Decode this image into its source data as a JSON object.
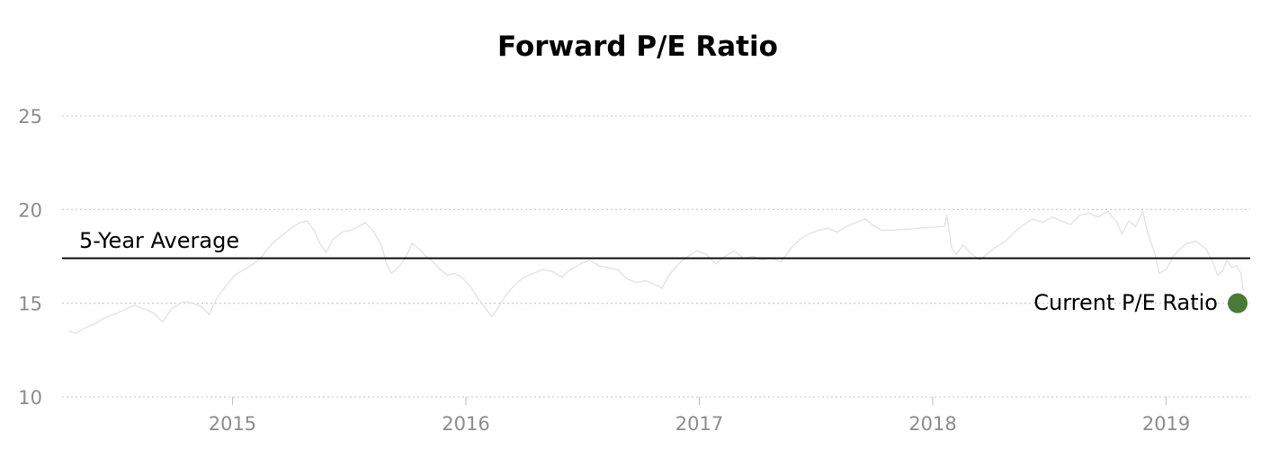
{
  "chart_data": {
    "type": "line",
    "title": "Forward P/E Ratio",
    "xlabel": "",
    "ylabel": "",
    "xlim": [
      2014.27,
      2019.36
    ],
    "ylim": [
      10,
      25
    ],
    "yticks": [
      10,
      15,
      20,
      25
    ],
    "xticks": [
      2015,
      2016,
      2017,
      2018,
      2019
    ],
    "grid": true,
    "series": [
      {
        "name": "",
        "color": "#e3e3e3",
        "points": [
          [
            2014.3,
            13.5
          ],
          [
            2014.33,
            13.4
          ],
          [
            2014.37,
            13.7
          ],
          [
            2014.41,
            13.9
          ],
          [
            2014.45,
            14.2
          ],
          [
            2014.49,
            14.4
          ],
          [
            2014.53,
            14.6
          ],
          [
            2014.58,
            14.9
          ],
          [
            2014.62,
            14.7
          ],
          [
            2014.66,
            14.5
          ],
          [
            2014.7,
            14.0
          ],
          [
            2014.74,
            14.7
          ],
          [
            2014.79,
            15.1
          ],
          [
            2014.83,
            15.0
          ],
          [
            2014.87,
            14.8
          ],
          [
            2014.9,
            14.4
          ],
          [
            2014.93,
            15.2
          ],
          [
            2014.97,
            15.9
          ],
          [
            2015.01,
            16.5
          ],
          [
            2015.05,
            16.8
          ],
          [
            2015.09,
            17.1
          ],
          [
            2015.12,
            17.4
          ],
          [
            2015.15,
            17.9
          ],
          [
            2015.18,
            18.3
          ],
          [
            2015.22,
            18.7
          ],
          [
            2015.25,
            19.0
          ],
          [
            2015.29,
            19.3
          ],
          [
            2015.32,
            19.4
          ],
          [
            2015.35,
            18.9
          ],
          [
            2015.37,
            18.3
          ],
          [
            2015.4,
            17.7
          ],
          [
            2015.43,
            18.4
          ],
          [
            2015.47,
            18.8
          ],
          [
            2015.51,
            18.9
          ],
          [
            2015.54,
            19.1
          ],
          [
            2015.57,
            19.3
          ],
          [
            2015.6,
            18.9
          ],
          [
            2015.62,
            18.5
          ],
          [
            2015.64,
            18.0
          ],
          [
            2015.66,
            17.1
          ],
          [
            2015.68,
            16.6
          ],
          [
            2015.71,
            16.9
          ],
          [
            2015.74,
            17.4
          ],
          [
            2015.77,
            18.2
          ],
          [
            2015.8,
            17.9
          ],
          [
            2015.83,
            17.5
          ],
          [
            2015.86,
            17.2
          ],
          [
            2015.89,
            16.8
          ],
          [
            2015.92,
            16.5
          ],
          [
            2015.95,
            16.6
          ],
          [
            2015.98,
            16.4
          ],
          [
            2016.02,
            15.9
          ],
          [
            2016.05,
            15.3
          ],
          [
            2016.08,
            14.8
          ],
          [
            2016.11,
            14.3
          ],
          [
            2016.13,
            14.6
          ],
          [
            2016.17,
            15.4
          ],
          [
            2016.21,
            16.0
          ],
          [
            2016.25,
            16.4
          ],
          [
            2016.29,
            16.6
          ],
          [
            2016.33,
            16.8
          ],
          [
            2016.37,
            16.7
          ],
          [
            2016.41,
            16.4
          ],
          [
            2016.45,
            16.8
          ],
          [
            2016.49,
            17.1
          ],
          [
            2016.53,
            17.3
          ],
          [
            2016.57,
            17.0
          ],
          [
            2016.61,
            16.9
          ],
          [
            2016.65,
            16.8
          ],
          [
            2016.69,
            16.3
          ],
          [
            2016.73,
            16.1
          ],
          [
            2016.77,
            16.2
          ],
          [
            2016.81,
            16.0
          ],
          [
            2016.84,
            15.8
          ],
          [
            2016.87,
            16.5
          ],
          [
            2016.91,
            17.1
          ],
          [
            2016.95,
            17.5
          ],
          [
            2016.99,
            17.8
          ],
          [
            2017.03,
            17.6
          ],
          [
            2017.07,
            17.1
          ],
          [
            2017.11,
            17.5
          ],
          [
            2017.15,
            17.8
          ],
          [
            2017.19,
            17.4
          ],
          [
            2017.23,
            17.5
          ],
          [
            2017.27,
            17.3
          ],
          [
            2017.31,
            17.4
          ],
          [
            2017.35,
            17.2
          ],
          [
            2017.39,
            17.9
          ],
          [
            2017.43,
            18.4
          ],
          [
            2017.47,
            18.7
          ],
          [
            2017.51,
            18.9
          ],
          [
            2017.55,
            19.0
          ],
          [
            2017.59,
            18.8
          ],
          [
            2017.63,
            19.1
          ],
          [
            2017.67,
            19.3
          ],
          [
            2017.71,
            19.5
          ],
          [
            2017.74,
            19.2
          ],
          [
            2017.78,
            18.9
          ],
          [
            2017.83,
            18.9
          ],
          [
            2018.05,
            19.1
          ],
          [
            2018.06,
            19.7
          ],
          [
            2018.08,
            18.0
          ],
          [
            2018.1,
            17.6
          ],
          [
            2018.13,
            18.1
          ],
          [
            2018.16,
            17.7
          ],
          [
            2018.2,
            17.3
          ],
          [
            2018.23,
            17.6
          ],
          [
            2018.27,
            18.0
          ],
          [
            2018.31,
            18.3
          ],
          [
            2018.35,
            18.8
          ],
          [
            2018.39,
            19.2
          ],
          [
            2018.43,
            19.5
          ],
          [
            2018.47,
            19.3
          ],
          [
            2018.51,
            19.6
          ],
          [
            2018.55,
            19.4
          ],
          [
            2018.59,
            19.2
          ],
          [
            2018.63,
            19.7
          ],
          [
            2018.67,
            19.8
          ],
          [
            2018.71,
            19.6
          ],
          [
            2018.75,
            19.9
          ],
          [
            2018.79,
            19.3
          ],
          [
            2018.81,
            18.7
          ],
          [
            2018.84,
            19.4
          ],
          [
            2018.87,
            19.1
          ],
          [
            2018.9,
            19.9
          ],
          [
            2018.92,
            18.8
          ],
          [
            2018.95,
            17.7
          ],
          [
            2018.97,
            16.6
          ],
          [
            2019.0,
            16.8
          ],
          [
            2019.03,
            17.5
          ],
          [
            2019.06,
            17.9
          ],
          [
            2019.09,
            18.2
          ],
          [
            2019.13,
            18.3
          ],
          [
            2019.17,
            17.9
          ],
          [
            2019.2,
            17.2
          ],
          [
            2019.22,
            16.5
          ],
          [
            2019.24,
            16.7
          ],
          [
            2019.26,
            17.3
          ],
          [
            2019.28,
            16.9
          ],
          [
            2019.3,
            17.0
          ],
          [
            2019.32,
            16.6
          ],
          [
            2019.33,
            15.7
          ]
        ]
      }
    ],
    "average": {
      "label": "5-Year Average",
      "value": 17.4,
      "color": "#000000"
    },
    "current": {
      "label": "Current P/E Ratio",
      "value": 15.0,
      "color": "#4a7b36"
    }
  }
}
